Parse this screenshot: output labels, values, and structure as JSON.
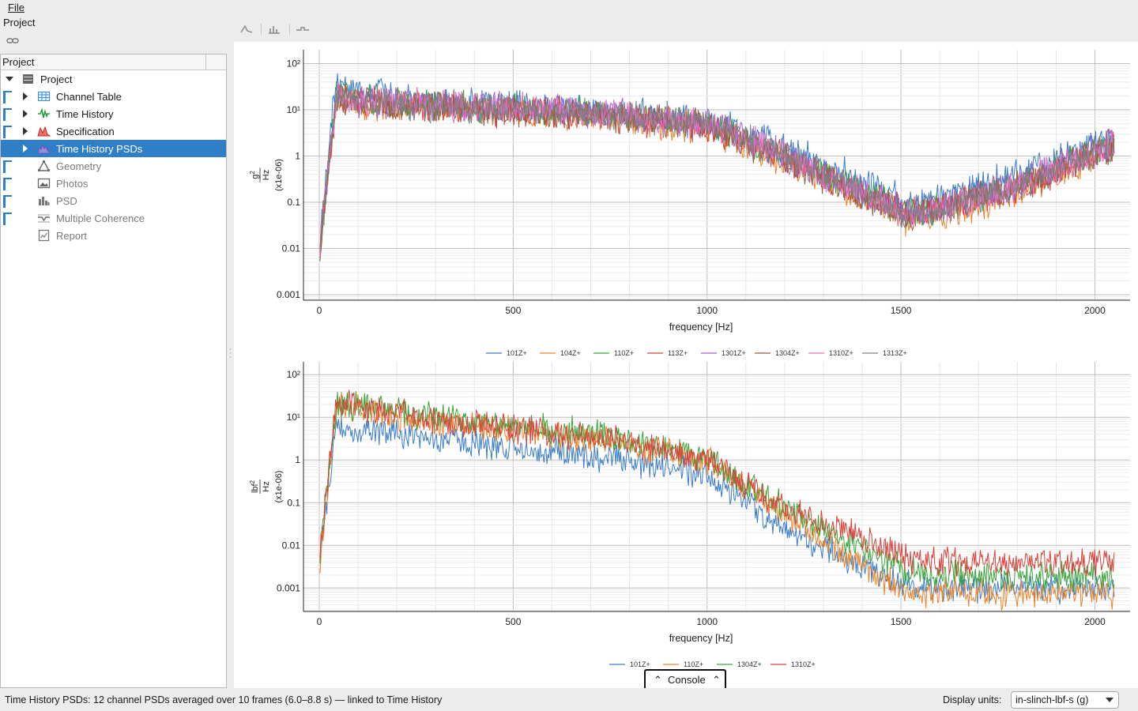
{
  "menubar": {
    "file_label": "File"
  },
  "project_title": "Project",
  "tree": {
    "header": "Project",
    "items": [
      {
        "label": "Project",
        "icon": "project-icon",
        "enabled": true,
        "selected": false,
        "expand": "open"
      },
      {
        "label": "Channel Table",
        "icon": "table-icon",
        "enabled": true,
        "selected": false,
        "expand": "closed"
      },
      {
        "label": "Time History",
        "icon": "waveform-icon",
        "enabled": true,
        "selected": false,
        "expand": "closed"
      },
      {
        "label": "Specification",
        "icon": "spec-icon",
        "enabled": true,
        "selected": false,
        "expand": "closed"
      },
      {
        "label": "Time History PSDs",
        "icon": "psd-icon",
        "enabled": true,
        "selected": true,
        "expand": "closed"
      },
      {
        "label": "Geometry",
        "icon": "geometry-icon",
        "enabled": false,
        "selected": false,
        "expand": "none"
      },
      {
        "label": "Photos",
        "icon": "photo-icon",
        "enabled": false,
        "selected": false,
        "expand": "none"
      },
      {
        "label": "PSD",
        "icon": "bar-chart-icon",
        "enabled": false,
        "selected": false,
        "expand": "none"
      },
      {
        "label": "Multiple Coherence",
        "icon": "coherence-icon",
        "enabled": false,
        "selected": false,
        "expand": "none"
      },
      {
        "label": "Report",
        "icon": "report-icon",
        "enabled": false,
        "selected": false,
        "expand": "none"
      }
    ]
  },
  "console": {
    "label": "Console"
  },
  "status": {
    "text": "Time History PSDs: 12 channel PSDs averaged over 10 frames (6.0–8.8 s) — linked to Time History",
    "units_label": "Display units:",
    "units_value": "in-slinch-lbf-s (g)"
  },
  "chart_data": [
    {
      "type": "line",
      "xlabel": "frequency [Hz]",
      "ylabel_num": "g",
      "ylabel_sup": "2",
      "ylabel_den": "Hz",
      "yscale_label": "(x1e-06)",
      "yscale": "log",
      "xlim": [
        0,
        2050
      ],
      "ylim": [
        0.001,
        200
      ],
      "x_ticks": [
        "0",
        "500",
        "1000",
        "1500",
        "2000"
      ],
      "y_ticks": [
        "10²",
        "10¹",
        "1",
        "0.1",
        "0.01",
        "0.001"
      ],
      "grid": true,
      "legend_position": "bottom",
      "series": [
        {
          "name": "101Z+",
          "color": "#3a7dc9",
          "levels": [
            0.01,
            60,
            30,
            15,
            10,
            6,
            2.5,
            0.12,
            0.08,
            0.12,
            0.4,
            2.5
          ]
        },
        {
          "name": "104Z+",
          "color": "#e9842a",
          "levels": [
            0.008,
            18,
            14,
            11,
            7,
            4,
            1.2,
            0.05,
            0.04,
            0.05,
            0.15,
            1.5
          ]
        },
        {
          "name": "110Z+",
          "color": "#3aa43a",
          "levels": [
            0.009,
            22,
            18,
            13,
            9,
            5,
            1.8,
            0.07,
            0.06,
            0.08,
            0.25,
            2
          ]
        },
        {
          "name": "113Z+",
          "color": "#d8423a",
          "levels": [
            0.007,
            20,
            16,
            12,
            8,
            4.5,
            1.6,
            0.06,
            0.05,
            0.07,
            0.2,
            1.8
          ]
        },
        {
          "name": "1301Z+",
          "color": "#9a63cf",
          "levels": [
            0.01,
            19,
            17,
            13,
            9,
            5,
            1.7,
            0.07,
            0.06,
            0.08,
            0.25,
            2
          ]
        },
        {
          "name": "1304Z+",
          "color": "#9a5a44",
          "levels": [
            0.009,
            18,
            15,
            11,
            8,
            4.5,
            1.5,
            0.06,
            0.05,
            0.07,
            0.22,
            1.7
          ]
        },
        {
          "name": "1310Z+",
          "color": "#e273c8",
          "levels": [
            0.011,
            21,
            17,
            13,
            9,
            5,
            1.8,
            0.06,
            0.05,
            0.07,
            0.23,
            1.9
          ]
        },
        {
          "name": "1313Z+",
          "color": "#808080",
          "levels": [
            0.01,
            19,
            16,
            12,
            8.5,
            4.8,
            1.7,
            0.065,
            0.055,
            0.075,
            0.24,
            1.9
          ]
        }
      ]
    },
    {
      "type": "line",
      "xlabel": "frequency [Hz]",
      "ylabel_num": "lbf",
      "ylabel_sup": "2",
      "ylabel_den": "Hz",
      "yscale_label": "(x1e-06)",
      "yscale": "log",
      "xlim": [
        0,
        2050
      ],
      "ylim": [
        0.0003,
        120
      ],
      "x_ticks": [
        "0",
        "500",
        "1000",
        "1500",
        "2000"
      ],
      "y_ticks": [
        "10²",
        "10¹",
        "1",
        "0.1",
        "0.01",
        "0.001"
      ],
      "grid": true,
      "legend_position": "bottom",
      "series": [
        {
          "name": "101Z+",
          "color": "#3a7dc9",
          "levels": [
            0.005,
            6,
            6,
            3,
            1.2,
            0.5,
            0.05,
            0.0012,
            0.0012,
            0.001,
            0.001,
            0.0009
          ]
        },
        {
          "name": "110Z+",
          "color": "#e9842a",
          "levels": [
            0.003,
            18,
            18,
            8,
            3,
            1,
            0.12,
            0.0009,
            0.0008,
            0.0008,
            0.0007,
            0.0007
          ]
        },
        {
          "name": "1304Z+",
          "color": "#3aa43a",
          "levels": [
            0.006,
            20,
            20,
            10,
            4,
            1.2,
            0.15,
            0.003,
            0.0025,
            0.002,
            0.0018,
            0.0018
          ]
        },
        {
          "name": "1310Z+",
          "color": "#d8423a",
          "levels": [
            0.005,
            22,
            20,
            9,
            3.5,
            1.1,
            0.13,
            0.007,
            0.005,
            0.004,
            0.004,
            0.004
          ]
        }
      ]
    }
  ]
}
